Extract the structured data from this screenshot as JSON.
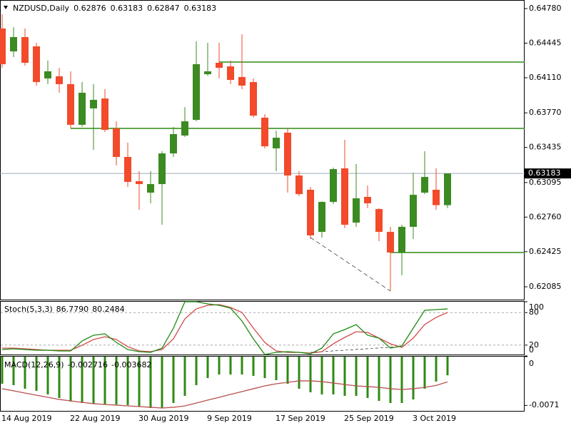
{
  "chart_data": [
    {
      "type": "candlestick",
      "title": "NZDUSD,Daily",
      "categories": [
        "14 Aug 2019",
        null,
        null,
        null,
        null,
        null,
        "22 Aug 2019",
        null,
        null,
        null,
        null,
        null,
        "30 Aug 2019",
        null,
        null,
        null,
        null,
        null,
        "9 Sep 2019",
        null,
        null,
        null,
        null,
        null,
        "17 Sep 2019",
        null,
        null,
        null,
        null,
        null,
        "25 Sep 2019",
        null,
        null,
        null,
        null,
        null,
        "3 Oct 2019",
        null,
        null,
        null
      ],
      "open": [
        0.64587,
        0.64365,
        0.64504,
        0.64414,
        0.64103,
        0.64124,
        0.64048,
        0.63654,
        0.63813,
        0.63909,
        0.63619,
        0.63343,
        0.63108,
        0.62997,
        0.6308,
        0.63377,
        0.6355,
        0.63702,
        0.64144,
        0.64255,
        0.6422,
        0.64117,
        0.64068,
        0.63723,
        0.63426,
        0.63578,
        0.63163,
        0.63025,
        0.62617,
        0.62907,
        0.63232,
        0.62707,
        0.62956,
        0.62838,
        0.62617,
        0.62417,
        0.62666,
        0.62997,
        0.63025,
        0.62876
      ],
      "high": [
        0.64725,
        0.646,
        0.64587,
        0.64448,
        0.64276,
        0.64206,
        0.64172,
        0.64068,
        0.64048,
        0.63999,
        0.63688,
        0.63481,
        0.63205,
        0.63205,
        0.63398,
        0.63633,
        0.63826,
        0.64462,
        0.64448,
        0.64448,
        0.64276,
        0.64531,
        0.64103,
        0.63757,
        0.63598,
        0.63619,
        0.63205,
        0.63052,
        0.62914,
        0.63239,
        0.63509,
        0.63274,
        0.63066,
        0.62847,
        0.62666,
        0.62686,
        0.6319,
        0.63398,
        0.63232,
        0.63183
      ],
      "low": [
        0.64206,
        0.6431,
        0.64227,
        0.64034,
        0.64048,
        0.63965,
        0.63619,
        0.63633,
        0.63412,
        0.63585,
        0.6326,
        0.63052,
        0.62831,
        0.62894,
        0.62686,
        0.63343,
        0.63536,
        0.63688,
        0.6413,
        0.64103,
        0.64048,
        0.63999,
        0.63723,
        0.63426,
        0.63205,
        0.62997,
        0.62963,
        0.62548,
        0.62562,
        0.62887,
        0.62652,
        0.62666,
        0.62847,
        0.62527,
        0.62044,
        0.62196,
        0.62548,
        0.62983,
        0.62831,
        0.62847
      ],
      "close": [
        0.64241,
        0.64504,
        0.64255,
        0.64068,
        0.64172,
        0.64048,
        0.63654,
        0.63965,
        0.63896,
        0.63605,
        0.63343,
        0.63101,
        0.6308,
        0.6308,
        0.63377,
        0.63564,
        0.63688,
        0.64241,
        0.64172,
        0.64206,
        0.64089,
        0.64034,
        0.63743,
        0.63446,
        0.63529,
        0.63163,
        0.62983,
        0.62583,
        0.62907,
        0.63225,
        0.62686,
        0.62942,
        0.62894,
        0.62617,
        0.62417,
        0.62666,
        0.62976,
        0.63149,
        0.62876,
        0.63183
      ],
      "up_color": "#3c8a22",
      "down_color": "#f24a2a",
      "ylim": [
        0.61961,
        0.64863
      ],
      "yticks": [
        {
          "value": 0.6478,
          "label": "0.64780"
        },
        {
          "value": 0.64445,
          "label": "0.64445"
        },
        {
          "value": 0.6411,
          "label": "0.64110"
        },
        {
          "value": 0.6377,
          "label": "0.63770"
        },
        {
          "value": 0.63435,
          "label": "0.63435"
        },
        {
          "value": 0.63095,
          "label": "0.63095"
        },
        {
          "value": 0.6276,
          "label": "0.62760"
        },
        {
          "value": 0.62425,
          "label": "0.62425"
        },
        {
          "value": 0.62085,
          "label": "0.62085"
        }
      ],
      "levels": [
        0.64262,
        0.63619,
        0.62417
      ],
      "level_color": "#2e8a12",
      "trendline": [
        0.62562,
        0.62044
      ]
    },
    {
      "type": "line",
      "title": "Stoch(5,3,3)",
      "readout": [
        "86.7790",
        "80.2484"
      ],
      "series": [
        {
          "color": "#1e8a10",
          "values": [
            11.8,
            13.2,
            11.8,
            10.5,
            10.5,
            9.2,
            9.2,
            27.6,
            38.2,
            40.8,
            25.0,
            11.8,
            7.9,
            6.6,
            14.5,
            51.3,
            100,
            100,
            96.1,
            93.4,
            88.2,
            64.5,
            31.6,
            2.6,
            6.6,
            7.9,
            6.6,
            3.9,
            14.5,
            40.8,
            48.7,
            57.9,
            38.2,
            32.9,
            14.5,
            18.4,
            51.3,
            84.2,
            85.5,
            86.779
          ]
        },
        {
          "color": "#d24a4a",
          "values": [
            14.5,
            14.5,
            13.2,
            11.8,
            10.5,
            10.5,
            10.5,
            19.7,
            30.3,
            35.5,
            30.3,
            17.1,
            9.2,
            7.9,
            11.8,
            31.6,
            68.4,
            86.8,
            93.4,
            94.7,
            89.5,
            80.3,
            51.3,
            25.0,
            9.2,
            6.6,
            6.6,
            5.3,
            7.9,
            22.4,
            34.2,
            44.7,
            43.4,
            32.9,
            22.4,
            15.8,
            32.9,
            57.9,
            71.1,
            80.2484
          ]
        }
      ],
      "ylim": [
        0,
        100
      ],
      "yticks": [
        100,
        80,
        20,
        0
      ],
      "levels": [
        80,
        20
      ]
    },
    {
      "type": "macd",
      "title": "MACD(12,26,9)",
      "histogram": {
        "color": "#2e8a12",
        "values": [
          -0.00395,
          -0.00415,
          -0.00467,
          -0.00498,
          -0.0055,
          -0.00602,
          -0.00654,
          -0.00675,
          -0.00685,
          -0.00696,
          -0.00696,
          -0.00706,
          -0.00727,
          -0.00748,
          -0.00748,
          -0.00675,
          -0.00571,
          -0.00415,
          -0.00312,
          -0.0026,
          -0.0026,
          -0.0026,
          -0.0028,
          -0.00312,
          -0.00343,
          -0.00395,
          -0.00467,
          -0.00519,
          -0.0055,
          -0.0055,
          -0.00571,
          -0.00571,
          -0.00602,
          -0.00644,
          -0.00675,
          -0.00675,
          -0.00623,
          -0.00467,
          -0.00363,
          -0.002716
        ]
      },
      "signal": {
        "color": "#b85050",
        "values": [
          -0.00467,
          -0.00498,
          -0.0053,
          -0.00561,
          -0.00592,
          -0.00623,
          -0.00644,
          -0.00665,
          -0.00685,
          -0.00696,
          -0.00706,
          -0.00717,
          -0.00727,
          -0.00737,
          -0.00748,
          -0.00737,
          -0.00717,
          -0.00675,
          -0.00633,
          -0.00592,
          -0.0055,
          -0.00509,
          -0.00467,
          -0.00426,
          -0.00395,
          -0.00374,
          -0.00353,
          -0.00353,
          -0.00363,
          -0.00384,
          -0.00405,
          -0.00426,
          -0.00436,
          -0.00447,
          -0.00467,
          -0.00478,
          -0.00467,
          -0.00447,
          -0.0042,
          -0.003682
        ]
      },
      "ylim": [
        -0.008,
        0.0001
      ],
      "yticks": [
        0,
        -0.0071
      ]
    }
  ]
}
